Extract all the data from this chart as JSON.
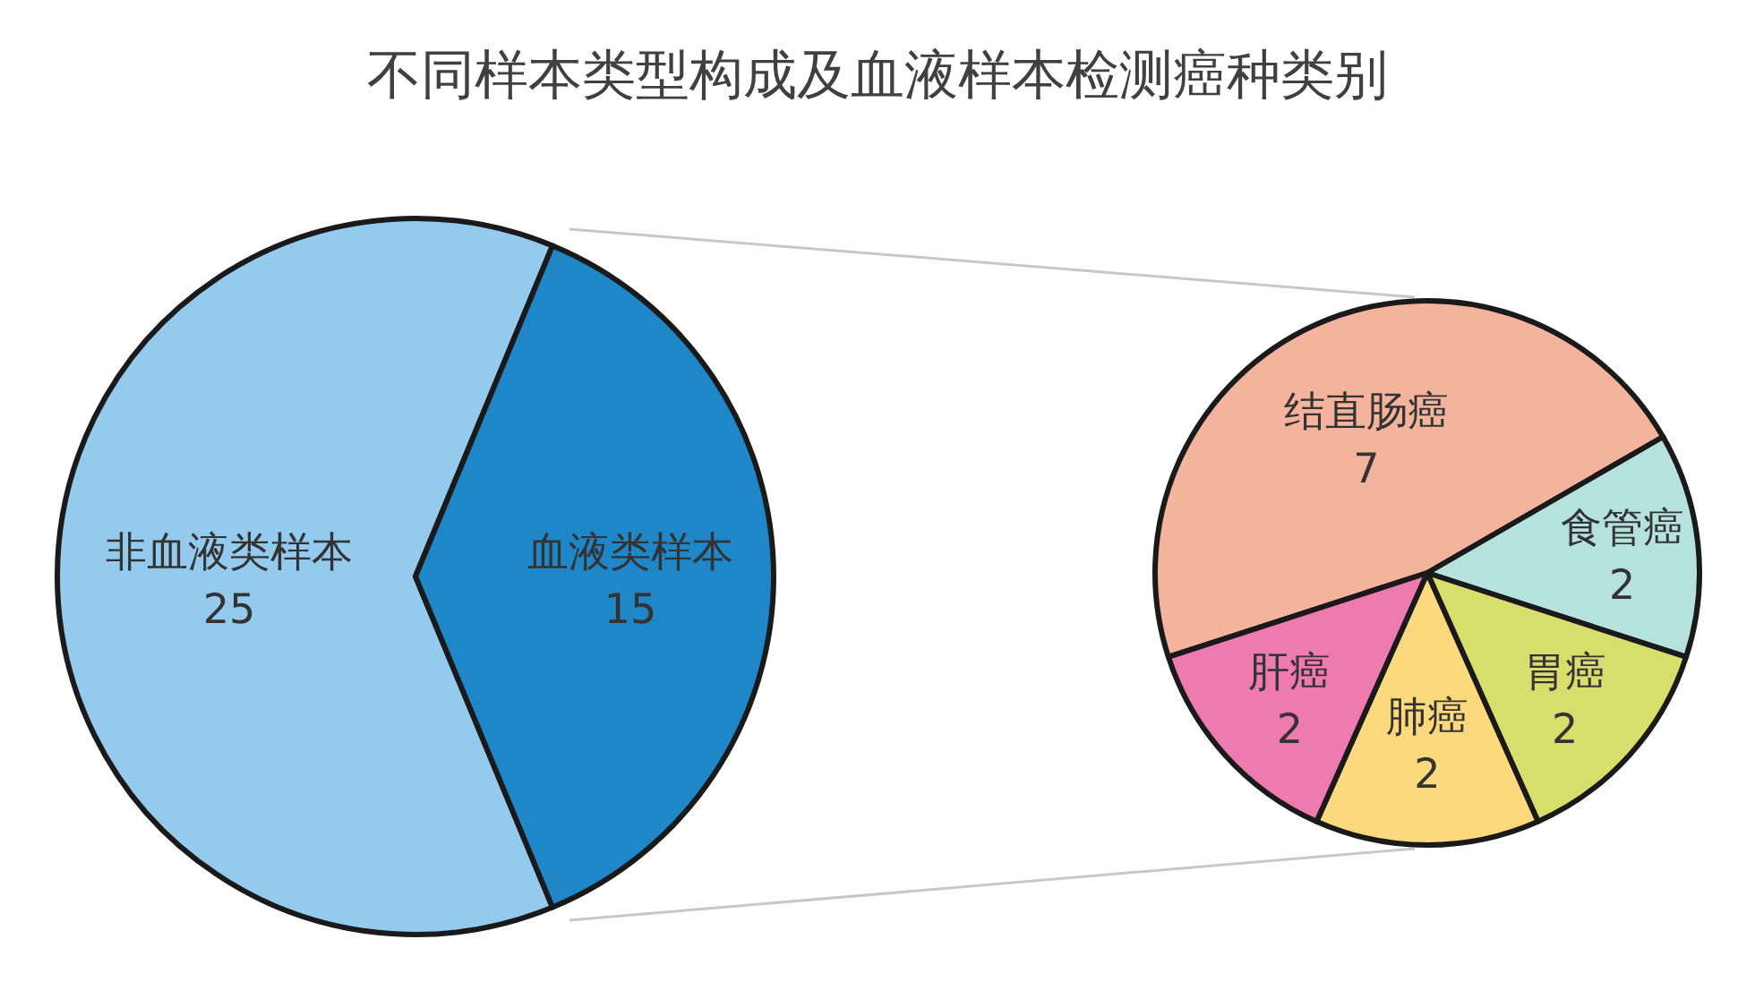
{
  "chart_data": [
    {
      "type": "pie",
      "title": "不同样本类型构成及血液样本检测癌种类别",
      "categories": [
        "非血液类样本",
        "血液类样本"
      ],
      "values": [
        25,
        15
      ],
      "colors": [
        "#93caed",
        "#1f87c7"
      ],
      "data_labels": true
    },
    {
      "type": "pie",
      "categories": [
        "结直肠癌",
        "食管癌",
        "胃癌",
        "肺癌",
        "肝癌"
      ],
      "values": [
        7,
        2,
        2,
        2,
        2
      ],
      "colors": [
        "#f4b39c",
        "#b5e2dc",
        "#d7de6b",
        "#fbd97c",
        "#ee7bb0"
      ],
      "data_labels": true
    }
  ]
}
